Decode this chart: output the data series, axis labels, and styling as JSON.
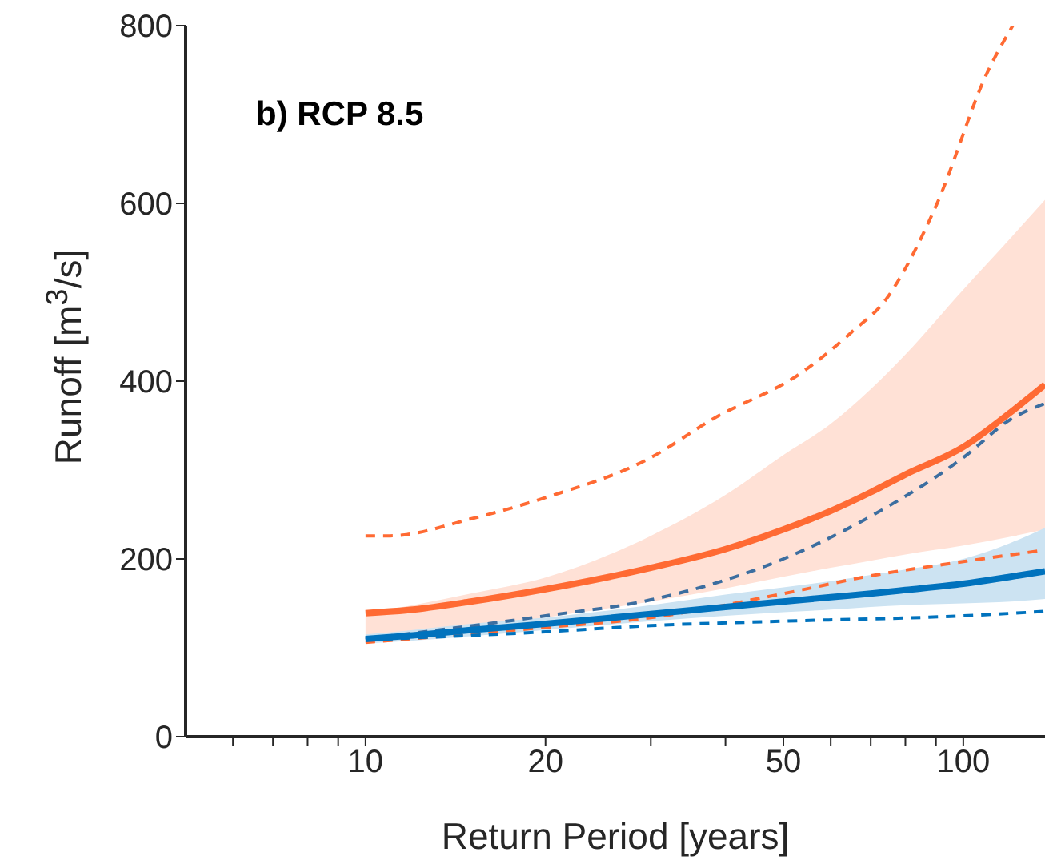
{
  "chart_data": {
    "type": "line",
    "xlabel": "Return Period [years]",
    "ylabel": "Runoff [m$^{3}$/s]",
    "annotations": [
      "b) RCP 8.5"
    ],
    "log": "x",
    "xlim": [
      5,
      137
    ],
    "xticks": [
      {
        "value": 6,
        "label": null
      },
      {
        "value": 7,
        "label": null
      },
      {
        "value": 8,
        "label": null
      },
      {
        "value": 9,
        "label": null
      },
      10,
      20,
      {
        "value": 30,
        "label": null
      },
      {
        "value": 40,
        "label": null
      },
      50,
      {
        "value": 60,
        "label": null
      },
      {
        "value": 70,
        "label": null
      },
      {
        "value": 80,
        "label": null
      },
      {
        "value": 90,
        "label": null
      },
      100
    ],
    "ylim": [
      0,
      800
    ],
    "yticks": [
      0,
      200,
      400,
      600,
      800
    ],
    "series": [
      {
        "color": "#ff6a33",
        "line_style": "solid",
        "x": [
          10,
          12,
          15,
          20,
          30,
          40,
          50,
          60,
          70,
          80,
          100,
          120,
          137
        ],
        "values": [
          139,
          143,
          152,
          166,
          190,
          211,
          233,
          254,
          275,
          295,
          326,
          365,
          396
        ],
        "lower": [
          105,
          113,
          120,
          134,
          152,
          167,
          180,
          190,
          198,
          205,
          215,
          225,
          233
        ],
        "upper": [
          139,
          148,
          161,
          179,
          226,
          272,
          317,
          352,
          391,
          430,
          503,
          561,
          604
        ]
      },
      {
        "color": "#0072bd",
        "line_style": "solid",
        "x": [
          10,
          12,
          15,
          20,
          30,
          40,
          50,
          60,
          70,
          80,
          100,
          120,
          137
        ],
        "values": [
          110,
          114,
          120,
          127,
          138,
          146,
          152,
          157,
          161,
          165,
          172,
          180,
          186
        ],
        "lower": [
          105,
          108,
          113,
          120,
          130,
          136,
          140,
          143,
          146,
          148,
          150,
          152,
          155
        ],
        "upper": [
          115,
          120,
          127,
          134,
          148,
          160,
          168,
          175,
          182,
          188,
          200,
          218,
          235
        ]
      },
      {
        "color": "#ff6a33",
        "line_style": "dashed",
        "x": [
          10,
          11,
          15,
          20,
          30,
          38,
          54,
          65,
          75,
          78,
          90,
          110,
          121
        ],
        "values": [
          226,
          226,
          245,
          269,
          314,
          357,
          411,
          455,
          496,
          514,
          597,
          749,
          800
        ]
      },
      {
        "color": "#ff6a33",
        "line_style": "dashed",
        "x": [
          10,
          20,
          30,
          50,
          70,
          100,
          137
        ],
        "values": [
          106,
          123,
          134,
          161,
          181,
          197,
          210
        ]
      },
      {
        "color": "#0072bd",
        "line_style": "dashed",
        "x": [
          10,
          20,
          30,
          50,
          100,
          137
        ],
        "values": [
          109,
          118,
          125,
          130,
          136,
          141
        ]
      },
      {
        "color": "#3c6ea0",
        "line_style": "dashed",
        "x": [
          10,
          20,
          30,
          50,
          70,
          100,
          120,
          137
        ],
        "values": [
          110,
          136,
          154,
          200,
          248,
          314,
          357,
          375
        ]
      }
    ]
  }
}
